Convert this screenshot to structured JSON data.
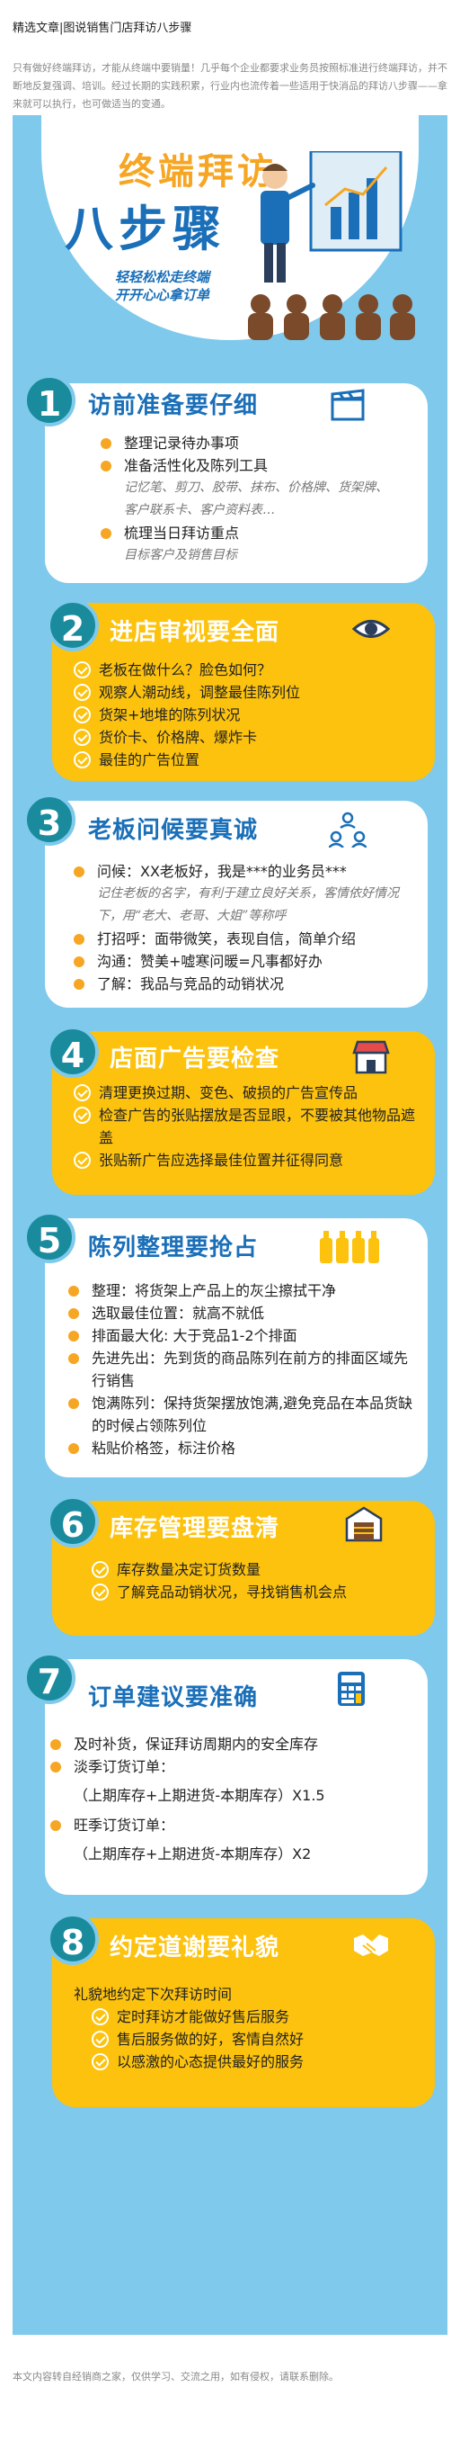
{
  "page": {
    "title": "精选文章|图说销售门店拜访八步骤",
    "intro": "只有做好终端拜访，才能从终端中要销量！几乎每个企业都要求业务员按照标准进行终端拜访，并不断地反复强调、培训。经过长期的实践积累，行业内也流传着一些适用于快消品的拜访八步骤——拿来就可以执行，也可做适当的变通。",
    "footer": "本文内容转自经销商之家，仅供学习、交流之用，如有侵权，请联系删除。"
  },
  "hero": {
    "title_line1": "终端拜访",
    "title_line2": "八步骤",
    "sub_line1": "轻轻松松走终端",
    "sub_line2": "开开心心拿订单"
  },
  "sections": [
    {
      "num": "1",
      "title": "访前准备要仔细",
      "icon": "clapperboard-icon",
      "items": [
        {
          "text": "整理记录待办事项",
          "style": "dot"
        },
        {
          "text": "准备活性化及陈列工具",
          "style": "dot"
        },
        {
          "text": "记忆笔、剪刀、胶带、抹布、价格牌、货架牌、客户联系卡、客户资料表…",
          "style": "note"
        },
        {
          "text": "梳理当日拜访重点",
          "style": "dot"
        },
        {
          "text": "目标客户及销售目标",
          "style": "note"
        }
      ]
    },
    {
      "num": "2",
      "title": "进店审视要全面",
      "icon": "eye-icon",
      "items": [
        {
          "text": "老板在做什么？脸色如何？",
          "style": "check"
        },
        {
          "text": "观察人潮动线，调整最佳陈列位",
          "style": "check"
        },
        {
          "text": "货架+地堆的陈列状况",
          "style": "check"
        },
        {
          "text": "货价卡、价格牌、爆炸卡",
          "style": "check"
        },
        {
          "text": "最佳的广告位置",
          "style": "check"
        }
      ]
    },
    {
      "num": "3",
      "title": "老板问候要真诚",
      "icon": "people-network-icon",
      "items": [
        {
          "text": "问候：XX老板好，我是***的业务员***",
          "style": "dot"
        },
        {
          "text": "记住老板的名字，有利于建立良好关系，客情依好情况下，用“老大、老哥、大姐”等称呼",
          "style": "note"
        },
        {
          "text": "打招呼：面带微笑，表现自信，简单介绍",
          "style": "dot"
        },
        {
          "text": "沟通：赞美+嘘寒问暖=凡事都好办",
          "style": "dot"
        },
        {
          "text": "了解：我品与竞品的动销状况",
          "style": "dot"
        }
      ]
    },
    {
      "num": "4",
      "title": "店面广告要检查",
      "icon": "storefront-icon",
      "items": [
        {
          "text": "清理更换过期、变色、破损的广告宣传品",
          "style": "check"
        },
        {
          "text": "检查广告的张贴摆放是否显眼，不要被其他物品遮盖",
          "style": "check"
        },
        {
          "text": "张贴新广告应选择最佳位置并征得同意",
          "style": "check"
        }
      ]
    },
    {
      "num": "5",
      "title": "陈列整理要抢占",
      "icon": "bottles-icon",
      "items": [
        {
          "text": "整理：将货架上产品上的灰尘擦拭干净",
          "style": "dot"
        },
        {
          "text": "选取最佳位置：就高不就低",
          "style": "dot"
        },
        {
          "text": "排面最大化: 大于竞品1-2个排面",
          "style": "dot"
        },
        {
          "text": "先进先出：先到货的商品陈列在前方的排面区域先行销售",
          "style": "dot"
        },
        {
          "text": "饱满陈列：保持货架摆放饱满,避免竞品在本品货缺的时候占领陈列位",
          "style": "dot"
        },
        {
          "text": "粘贴价格签，标注价格",
          "style": "dot"
        }
      ]
    },
    {
      "num": "6",
      "title": "库存管理要盘清",
      "icon": "warehouse-icon",
      "items": [
        {
          "text": "库存数量决定订货数量",
          "style": "check"
        },
        {
          "text": "了解竞品动销状况，寻找销售机会点",
          "style": "check"
        }
      ]
    },
    {
      "num": "7",
      "title": "订单建议要准确",
      "icon": "calculator-icon",
      "items": [
        {
          "text": "及时补货，保证拜访周期内的安全库存",
          "style": "dot"
        },
        {
          "text": "淡季订货订单：",
          "style": "dot"
        },
        {
          "text": "（上期库存+上期进货-本期库存）X1.5",
          "style": "plain"
        },
        {
          "text": "旺季订货订单：",
          "style": "dot"
        },
        {
          "text": "（上期库存+上期进货-本期库存）X2",
          "style": "plain"
        }
      ]
    },
    {
      "num": "8",
      "title": "约定道谢要礼貌",
      "icon": "handshake-icon",
      "items": [
        {
          "text": "礼貌地约定下次拜访时间",
          "style": "nodot"
        },
        {
          "text": "定时拜访才能做好售后服务",
          "style": "check"
        },
        {
          "text": "售后服务做的好，客情自然好",
          "style": "check"
        },
        {
          "text": "以感激的心态提供最好的服务",
          "style": "check"
        }
      ]
    }
  ]
}
